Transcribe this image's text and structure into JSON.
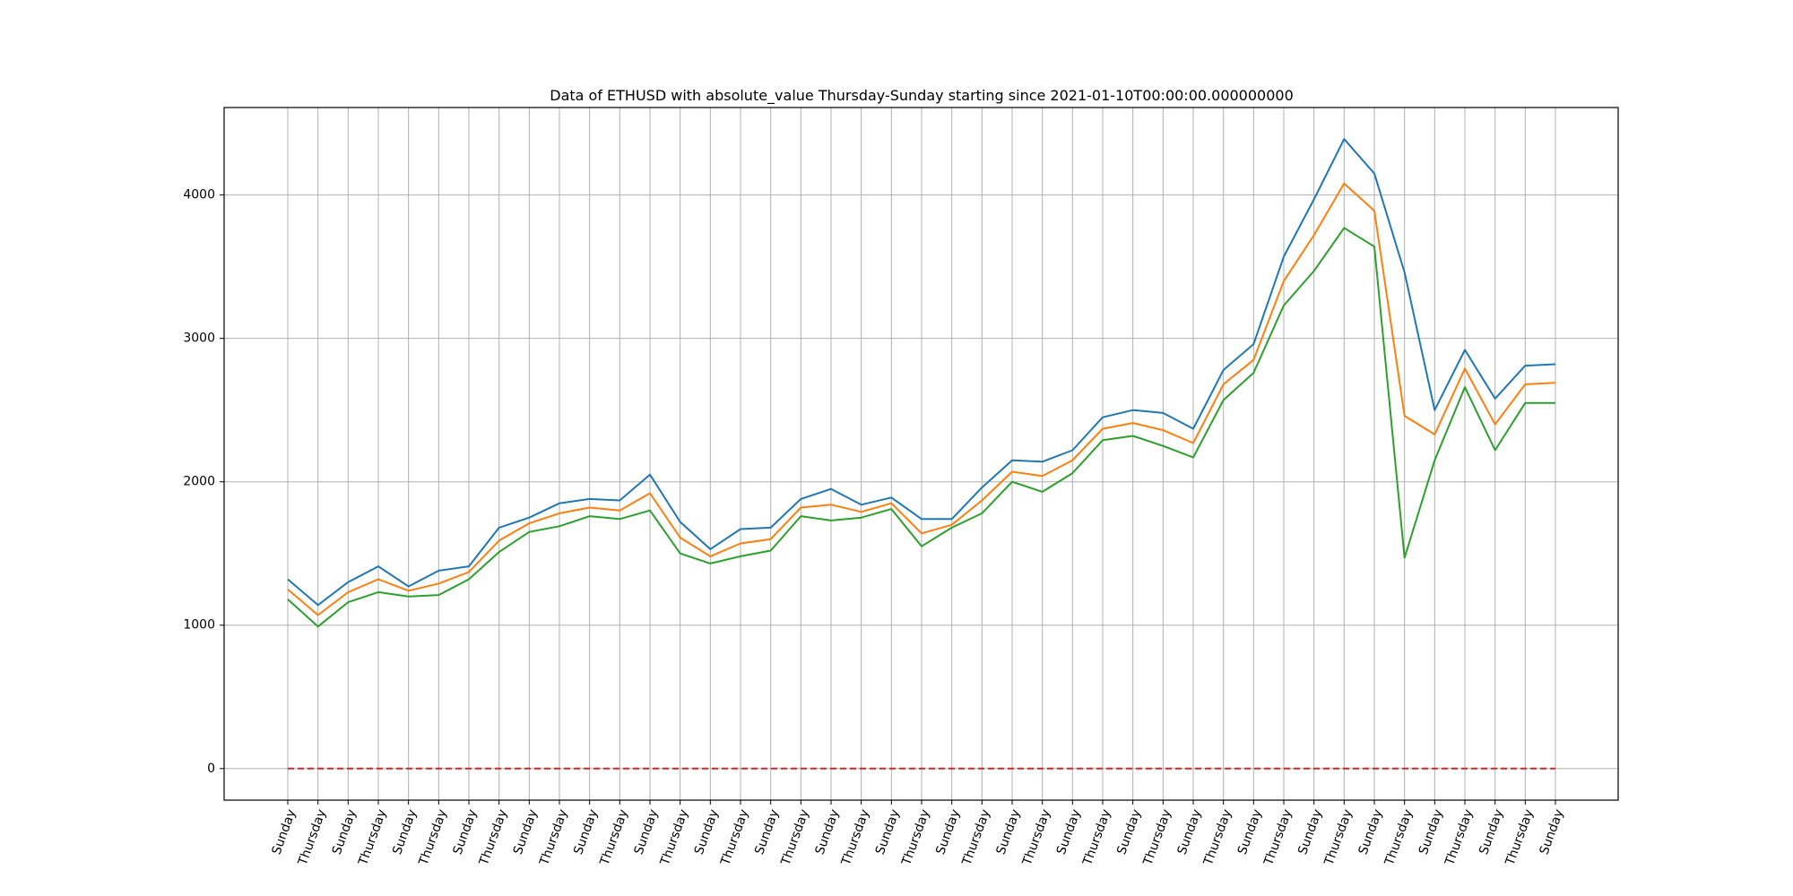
{
  "chart_data": {
    "type": "line",
    "title": "Data of ETHUSD with absolute_value Thursday-Sunday starting since 2021-01-10T00:00:00.000000000",
    "xlabel": "",
    "ylabel": "",
    "categories": [
      "Sunday",
      "Thursday",
      "Sunday",
      "Thursday",
      "Sunday",
      "Thursday",
      "Sunday",
      "Thursday",
      "Sunday",
      "Thursday",
      "Sunday",
      "Thursday",
      "Sunday",
      "Thursday",
      "Sunday",
      "Thursday",
      "Sunday",
      "Thursday",
      "Sunday",
      "Thursday",
      "Sunday",
      "Thursday",
      "Sunday",
      "Thursday",
      "Sunday",
      "Thursday",
      "Sunday",
      "Thursday",
      "Sunday",
      "Thursday",
      "Sunday",
      "Thursday",
      "Sunday",
      "Thursday",
      "Sunday",
      "Thursday",
      "Sunday",
      "Thursday",
      "Sunday",
      "Thursday",
      "Sunday",
      "Thursday",
      "Sunday"
    ],
    "ylim": [
      -220,
      4610
    ],
    "yticks": [
      0,
      1000,
      2000,
      3000,
      4000
    ],
    "grid": true,
    "series": [
      {
        "color": "#1f77b4",
        "style": "solid",
        "values": [
          1320,
          1140,
          1300,
          1410,
          1270,
          1380,
          1410,
          1680,
          1750,
          1850,
          1880,
          1870,
          2050,
          1720,
          1530,
          1670,
          1680,
          1880,
          1950,
          1840,
          1890,
          1740,
          1740,
          1960,
          2150,
          2140,
          2220,
          2450,
          2500,
          2480,
          2370,
          2780,
          2960,
          3570,
          3970,
          4390,
          4150,
          3460,
          2500,
          2920,
          2580,
          2810,
          2820
        ]
      },
      {
        "color": "#ff7f0e",
        "style": "solid",
        "values": [
          1250,
          1070,
          1230,
          1320,
          1240,
          1290,
          1370,
          1590,
          1710,
          1780,
          1820,
          1800,
          1920,
          1610,
          1480,
          1570,
          1600,
          1820,
          1840,
          1790,
          1850,
          1640,
          1700,
          1870,
          2070,
          2040,
          2150,
          2370,
          2410,
          2360,
          2270,
          2680,
          2850,
          3400,
          3720,
          4080,
          3890,
          2460,
          2330,
          2790,
          2400,
          2680,
          2690
        ]
      },
      {
        "color": "#2ca02c",
        "style": "solid",
        "values": [
          1180,
          990,
          1160,
          1230,
          1200,
          1210,
          1320,
          1510,
          1650,
          1690,
          1760,
          1740,
          1800,
          1500,
          1430,
          1480,
          1520,
          1760,
          1730,
          1750,
          1810,
          1550,
          1680,
          1780,
          2000,
          1930,
          2060,
          2290,
          2320,
          2250,
          2170,
          2570,
          2760,
          3230,
          3470,
          3770,
          3640,
          1470,
          2150,
          2660,
          2220,
          2550,
          2550
        ]
      },
      {
        "color": "#d62728",
        "style": "dashed",
        "values": [
          0,
          0,
          0,
          0,
          0,
          0,
          0,
          0,
          0,
          0,
          0,
          0,
          0,
          0,
          0,
          0,
          0,
          0,
          0,
          0,
          0,
          0,
          0,
          0,
          0,
          0,
          0,
          0,
          0,
          0,
          0,
          0,
          0,
          0,
          0,
          0,
          0,
          0,
          0,
          0,
          0,
          0,
          0
        ]
      }
    ]
  }
}
